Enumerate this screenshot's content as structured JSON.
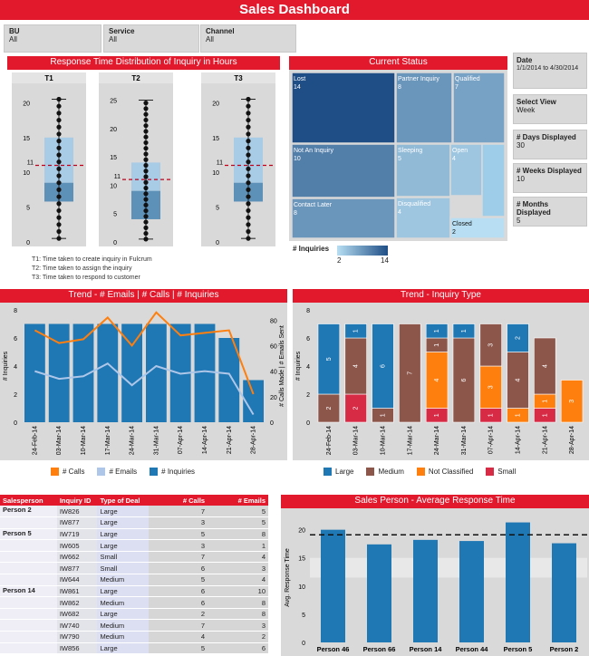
{
  "header": {
    "title": "Sales Dashboard"
  },
  "filters": [
    {
      "label": "BU",
      "value": "All"
    },
    {
      "label": "Service",
      "value": "All"
    },
    {
      "label": "Channel",
      "value": "All"
    }
  ],
  "side_controls": [
    {
      "label": "Date",
      "value": "1/1/2014 to 4/30/2014"
    },
    {
      "label": "Select View",
      "value": "Week"
    },
    {
      "label": "# Days Displayed",
      "value": "30"
    },
    {
      "label": "# Weeks Displayed",
      "value": "10"
    },
    {
      "label": "# Months Displayed",
      "value": "5"
    }
  ],
  "colors": {
    "accent": "#e2192d",
    "large": "#1f77b4",
    "medium": "#8c564b",
    "not_classified": "#ff7f0e",
    "small": "#d62a45",
    "emails": "#aec7e8"
  },
  "panels": {
    "response_time": "Response Time Distribution of Inquiry in Hours",
    "current_status": "Current Status",
    "trend_emails": "Trend - # Emails | # Calls | # Inquiries",
    "trend_inquiry_type": "Trend - Inquiry Type",
    "sales_person_avg": "Sales Person - Average Response Time"
  },
  "notes": [
    {
      "key": "T1",
      "text": ": Time taken to create inquiry in Fulcrum"
    },
    {
      "key": "T2",
      "text": ": Time taken to assign the inquiry"
    },
    {
      "key": "T3",
      "text": ": Time taken to respond to customer"
    }
  ],
  "chart_data": [
    {
      "type": "boxplot",
      "title": "Response Time Distribution of Inquiry in Hours",
      "boxes": [
        {
          "name": "T1",
          "ylim": [
            0,
            22
          ],
          "ticks": [
            0,
            5,
            10,
            15,
            20
          ],
          "min": 0.5,
          "q1": 5.8,
          "median": 8.5,
          "q3": 15,
          "max": 20.5,
          "ref": 11,
          "ref_label": "11"
        },
        {
          "name": "T2",
          "ylim": [
            0,
            27
          ],
          "ticks": [
            0,
            5,
            10,
            15,
            20,
            25
          ],
          "min": 0.5,
          "q1": 4,
          "median": 9,
          "q3": 14,
          "max": 25,
          "ref": 11,
          "ref_label": "11"
        },
        {
          "name": "T3",
          "ylim": [
            0,
            22
          ],
          "ticks": [
            0,
            5,
            10,
            15,
            20
          ],
          "min": 0.5,
          "q1": 5.8,
          "median": 8.5,
          "q3": 15,
          "max": 20.5,
          "ref": 11,
          "ref_label": "11"
        }
      ]
    },
    {
      "type": "treemap",
      "title": "Current Status",
      "items": [
        {
          "label": "Lost",
          "value": 14
        },
        {
          "label": "Partner Inquiry",
          "value": 8
        },
        {
          "label": "Qualified",
          "value": 7
        },
        {
          "label": "Not An Inquiry",
          "value": 10
        },
        {
          "label": "Sleeping",
          "value": 5
        },
        {
          "label": "Open",
          "value": 4
        },
        {
          "label": "Contact Later",
          "value": 8
        },
        {
          "label": "Disqualified",
          "value": 4
        },
        {
          "label": "Closed",
          "value": 2
        }
      ],
      "legend": {
        "label": "# Inquiries",
        "min": 2,
        "max": 14
      }
    },
    {
      "type": "bar+line",
      "title": "Trend - # Emails | # Calls | # Inquiries",
      "categories": [
        "24-Feb-14",
        "03-Mar-14",
        "10-Mar-14",
        "17-Mar-14",
        "24-Mar-14",
        "31-Mar-14",
        "07-Apr-14",
        "14-Apr-14",
        "21-Apr-14",
        "28-Apr-14"
      ],
      "ylabel": "# Inquiries",
      "y2label": "# Calls Made | # Emails Sent",
      "ylim": [
        0,
        8
      ],
      "yticks": [
        0,
        2,
        4,
        6,
        8
      ],
      "y2lim": [
        0,
        88
      ],
      "y2ticks": [
        0,
        20,
        40,
        60,
        80
      ],
      "series": [
        {
          "name": "# Inquiries",
          "type": "bar",
          "values": [
            7,
            7,
            7,
            7,
            7,
            7,
            7,
            7,
            6,
            3
          ]
        },
        {
          "name": "# Calls",
          "type": "line",
          "axis": "right",
          "values": [
            72,
            62,
            65,
            82,
            60,
            86,
            68,
            70,
            72,
            22
          ]
        },
        {
          "name": "# Emails",
          "type": "line",
          "axis": "right",
          "values": [
            40,
            34,
            36,
            46,
            29,
            44,
            38,
            40,
            38,
            6
          ]
        }
      ]
    },
    {
      "type": "stacked-bar",
      "title": "Trend - Inquiry Type",
      "categories": [
        "24-Feb-14",
        "03-Mar-14",
        "10-Mar-14",
        "17-Mar-14",
        "24-Mar-14",
        "31-Mar-14",
        "07-Apr-14",
        "14-Apr-14",
        "21-Apr-14",
        "28-Apr-14"
      ],
      "ylabel": "# Inquiries",
      "ylim": [
        0,
        8
      ],
      "yticks": [
        0,
        2,
        4,
        6,
        8
      ],
      "series": [
        {
          "name": "Small",
          "values": [
            0,
            2,
            0,
            0,
            1,
            0,
            1,
            0,
            1,
            0
          ]
        },
        {
          "name": "Not Classified",
          "values": [
            0,
            0,
            0,
            0,
            4,
            0,
            3,
            1,
            1,
            3
          ]
        },
        {
          "name": "Medium",
          "values": [
            2,
            4,
            1,
            7,
            1,
            6,
            3,
            4,
            4,
            0
          ]
        },
        {
          "name": "Large",
          "values": [
            5,
            1,
            6,
            0,
            1,
            1,
            0,
            2,
            0,
            0
          ]
        }
      ]
    },
    {
      "type": "bar",
      "title": "Sales Person - Average Response Time",
      "categories": [
        "Person 46",
        "Person 66",
        "Person 14",
        "Person 44",
        "Person 5",
        "Person 2"
      ],
      "values": [
        20,
        17.4,
        18.2,
        18,
        21.3,
        17.6
      ],
      "ylabel": "Avg. Response Time",
      "ylim": [
        0,
        23
      ],
      "yticks": [
        0,
        5,
        10,
        15,
        20
      ],
      "reference_line": 19.1
    }
  ],
  "table": {
    "headers": [
      "Salesperson",
      "Inquiry ID",
      "Type of Deal",
      "# Calls",
      "# Emails"
    ],
    "rows": [
      {
        "person": "Person 2",
        "id": "IW826",
        "deal": "Large",
        "calls": "7",
        "emails": "5"
      },
      {
        "person": "",
        "id": "IW877",
        "deal": "Large",
        "calls": "3",
        "emails": "5"
      },
      {
        "person": "Person 5",
        "id": "IW719",
        "deal": "Large",
        "calls": "5",
        "emails": "8"
      },
      {
        "person": "",
        "id": "IW605",
        "deal": "Large",
        "calls": "3",
        "emails": "1"
      },
      {
        "person": "",
        "id": "IW662",
        "deal": "Small",
        "calls": "7",
        "emails": "4"
      },
      {
        "person": "",
        "id": "IW877",
        "deal": "Small",
        "calls": "6",
        "emails": "3"
      },
      {
        "person": "",
        "id": "IW644",
        "deal": "Medium",
        "calls": "5",
        "emails": "4"
      },
      {
        "person": "Person 14",
        "id": "IW861",
        "deal": "Large",
        "calls": "6",
        "emails": "10"
      },
      {
        "person": "",
        "id": "IW862",
        "deal": "Medium",
        "calls": "6",
        "emails": "8"
      },
      {
        "person": "",
        "id": "IW682",
        "deal": "Large",
        "calls": "2",
        "emails": "8"
      },
      {
        "person": "",
        "id": "IW740",
        "deal": "Medium",
        "calls": "7",
        "emails": "3"
      },
      {
        "person": "",
        "id": "IW790",
        "deal": "Medium",
        "calls": "4",
        "emails": "2"
      },
      {
        "person": "",
        "id": "IW856",
        "deal": "Large",
        "calls": "5",
        "emails": "6"
      }
    ]
  },
  "legends": {
    "trend_emails": [
      "# Calls",
      "# Emails",
      "# Inquiries"
    ],
    "inquiry_type": [
      "Large",
      "Medium",
      "Not Classified",
      "Small"
    ]
  }
}
